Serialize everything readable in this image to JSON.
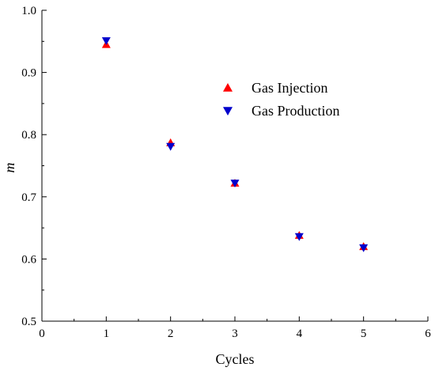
{
  "chart_data": {
    "type": "scatter",
    "title": "",
    "xlabel": "Cycles",
    "ylabel": "m",
    "xlim": [
      0,
      6
    ],
    "ylim": [
      0.5,
      1.0
    ],
    "x_ticks": [
      0,
      1,
      2,
      3,
      4,
      5,
      6
    ],
    "y_ticks": [
      0.5,
      0.6,
      0.7,
      0.8,
      0.9,
      1.0
    ],
    "x_tick_labels": [
      "0",
      "1",
      "2",
      "3",
      "4",
      "5",
      "6"
    ],
    "y_tick_labels": [
      "0.5",
      "0.6",
      "0.7",
      "0.8",
      "0.9",
      "1.0"
    ],
    "grid": false,
    "legend_position": "upper-right",
    "series": [
      {
        "name": "Gas Injection",
        "marker": "triangle-up",
        "color": "#ff0000",
        "x": [
          1,
          2,
          3,
          4,
          5
        ],
        "y": [
          0.945,
          0.787,
          0.722,
          0.638,
          0.62
        ]
      },
      {
        "name": "Gas Production",
        "marker": "triangle-down",
        "color": "#0000cc",
        "x": [
          1,
          2,
          3,
          4,
          5
        ],
        "y": [
          0.951,
          0.781,
          0.722,
          0.636,
          0.618
        ]
      }
    ]
  }
}
